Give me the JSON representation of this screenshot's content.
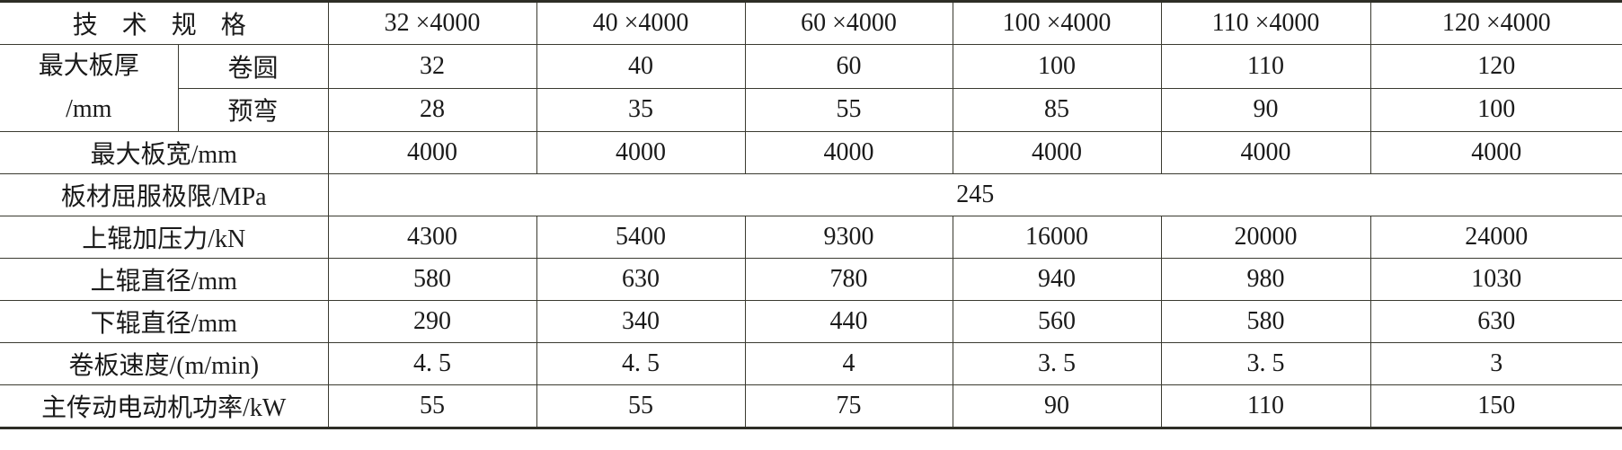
{
  "header": {
    "label": "技 术 规 格",
    "specs": [
      "32 ×4000",
      "40 ×4000",
      "60 ×4000",
      "100 ×4000",
      "110 ×4000",
      "120 ×4000"
    ]
  },
  "thickness": {
    "label_line1": "最大板厚",
    "label_line2": "/mm",
    "rows": [
      {
        "sub": "卷圆",
        "values": [
          "32",
          "40",
          "60",
          "100",
          "110",
          "120"
        ]
      },
      {
        "sub": "预弯",
        "values": [
          "28",
          "35",
          "55",
          "85",
          "90",
          "100"
        ]
      }
    ]
  },
  "rows": [
    {
      "label": "最大板宽/mm",
      "values": [
        "4000",
        "4000",
        "4000",
        "4000",
        "4000",
        "4000"
      ]
    }
  ],
  "yield": {
    "label": "板材屈服极限/MPa",
    "value": "245"
  },
  "rows2": [
    {
      "label": "上辊加压力/kN",
      "values": [
        "4300",
        "5400",
        "9300",
        "16000",
        "20000",
        "24000"
      ]
    },
    {
      "label": "上辊直径/mm",
      "values": [
        "580",
        "630",
        "780",
        "940",
        "980",
        "1030"
      ]
    },
    {
      "label": "下辊直径/mm",
      "values": [
        "290",
        "340",
        "440",
        "560",
        "580",
        "630"
      ]
    },
    {
      "label": "卷板速度/(m/min)",
      "values": [
        "4. 5",
        "4. 5",
        "4",
        "3. 5",
        "3. 5",
        "3"
      ]
    },
    {
      "label": "主传动电动机功率/kW",
      "values": [
        "55",
        "55",
        "75",
        "90",
        "110",
        "150"
      ]
    }
  ]
}
